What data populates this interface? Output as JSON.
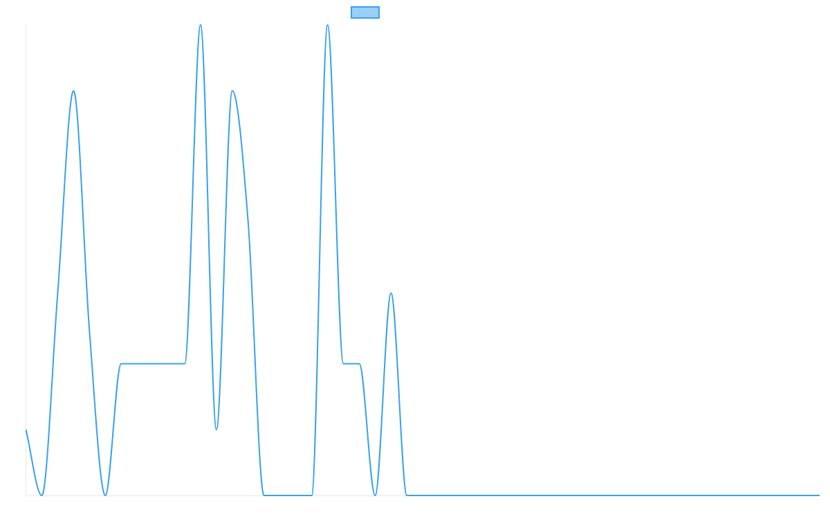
{
  "chart_data": {
    "type": "line",
    "title": "",
    "xlabel": "",
    "ylabel": "",
    "legend": {
      "position": "top-center",
      "show": true
    },
    "grid": false,
    "curve": "monotone",
    "xlim": [
      0,
      50
    ],
    "ylim": [
      0,
      100
    ],
    "series": [
      {
        "name": "",
        "color": "#36a2eb",
        "fill_color": "#9ad0f5",
        "values": [
          14,
          0,
          43,
          86,
          35,
          0,
          28,
          28,
          28,
          28,
          28,
          100,
          14,
          86,
          58,
          0,
          0,
          0,
          0,
          100,
          28,
          28,
          0,
          43,
          0,
          0,
          0,
          0,
          0,
          0,
          0,
          0,
          0,
          0,
          0,
          0,
          0,
          0,
          0,
          0,
          0,
          0,
          0,
          0,
          0,
          0,
          0,
          0,
          0,
          0,
          0
        ]
      }
    ]
  }
}
